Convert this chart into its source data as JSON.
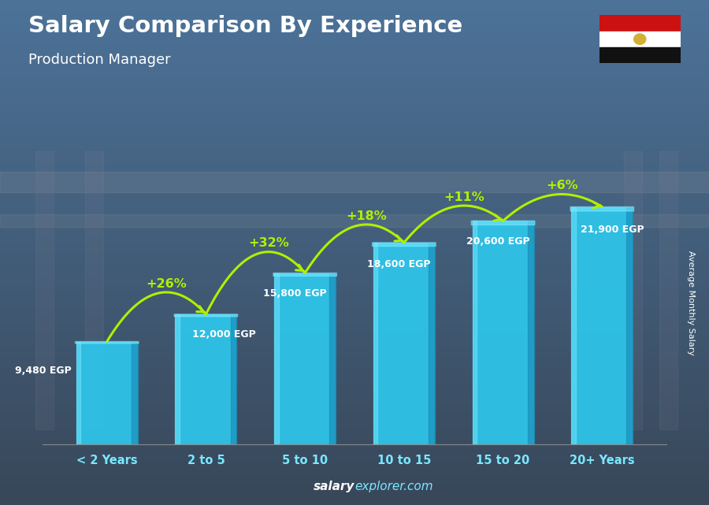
{
  "title": "Salary Comparison By Experience",
  "subtitle": "Production Manager",
  "categories": [
    "< 2 Years",
    "2 to 5",
    "5 to 10",
    "10 to 15",
    "15 to 20",
    "20+ Years"
  ],
  "values": [
    9480,
    12000,
    15800,
    18600,
    20600,
    21900
  ],
  "bar_color": "#2ec4e8",
  "bar_highlight": "#7ae8ff",
  "bar_shadow": "#1a90bb",
  "bg_color": "#3a6b8a",
  "title_color": "#ffffff",
  "subtitle_color": "#ffffff",
  "salary_label_color": "#ffffff",
  "pct_label_color": "#b0f000",
  "pct_increases": [
    "+26%",
    "+32%",
    "+18%",
    "+11%",
    "+6%"
  ],
  "salary_labels": [
    "9,480 EGP",
    "12,000 EGP",
    "15,800 EGP",
    "18,600 EGP",
    "20,600 EGP",
    "21,900 EGP"
  ],
  "footer_bold": "salary",
  "footer_normal": "explorer.com",
  "ylabel": "Average Monthly Salary",
  "ylim": [
    0,
    27000
  ],
  "flag_red": "#cc1111",
  "flag_white": "#ffffff",
  "flag_black": "#111111",
  "flag_gold": "#d4af37"
}
